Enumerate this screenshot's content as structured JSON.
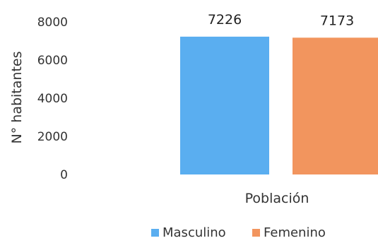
{
  "chart_data": {
    "type": "bar",
    "categories": [
      "Población"
    ],
    "series": [
      {
        "name": "Masculino",
        "values": [
          7226
        ],
        "color": "#5aaef0"
      },
      {
        "name": "Femenino",
        "values": [
          7173
        ],
        "color": "#f2955e"
      }
    ],
    "xlabel": "Población",
    "ylabel": "N° habitantes",
    "ylim": [
      0,
      8000
    ],
    "yticks": [
      "0",
      "2000",
      "4000",
      "6000",
      "8000"
    ],
    "data_labels": [
      "7226",
      "7173"
    ],
    "grid": false,
    "legend_position": "bottom"
  }
}
